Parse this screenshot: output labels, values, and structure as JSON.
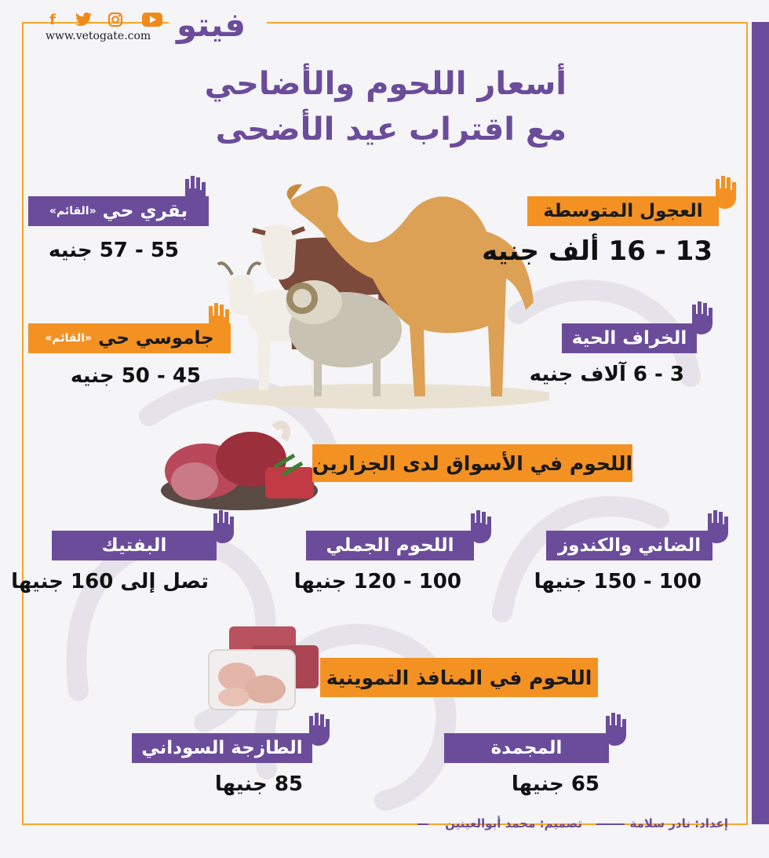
{
  "header": {
    "logo_text": "فيتو",
    "website": "www.vetogate.com",
    "social_icons": [
      "facebook-icon",
      "twitter-icon",
      "instagram-icon",
      "youtube-icon"
    ]
  },
  "title": {
    "line1": "أسعار اللحوم والأضاحي",
    "line2": "مع اقتراب عيد الأضحى"
  },
  "livestock": {
    "calves": {
      "label": "العجول المتوسطة",
      "price": "13 - 16 ألف جنيه"
    },
    "sheep": {
      "label": "الخراف الحية",
      "price": "3 - 6 آلاف جنيه"
    },
    "cow": {
      "label": "بقري حي",
      "tag": "«القائم»",
      "price": "55 - 57 جنيه"
    },
    "buffalo": {
      "label": "جاموسي حي",
      "tag": "«القائم»",
      "price": "45 - 50 جنيه"
    }
  },
  "butchers": {
    "heading": "اللحوم في الأسواق لدى الجزارين",
    "items": [
      {
        "label": "الضاني والكندوز",
        "price": "100 - 150 جنيها"
      },
      {
        "label": "اللحوم الجملي",
        "price": "100 - 120 جنيها"
      },
      {
        "label": "البفتيك",
        "price": "تصل إلى 160 جنيها"
      }
    ]
  },
  "outlets": {
    "heading": "اللحوم في المنافذ التموينية",
    "items": [
      {
        "label": "المجمدة",
        "price": "65 جنيها"
      },
      {
        "label": "الطازجة السوداني",
        "price": "85 جنيها"
      }
    ]
  },
  "credits": {
    "prepared": "إعداد: نادر سلامة",
    "design": "تصميم: محمد أبوالعينين"
  },
  "colors": {
    "purple": "#6b4c9a",
    "orange": "#f39222",
    "frame": "#f3a72b"
  }
}
